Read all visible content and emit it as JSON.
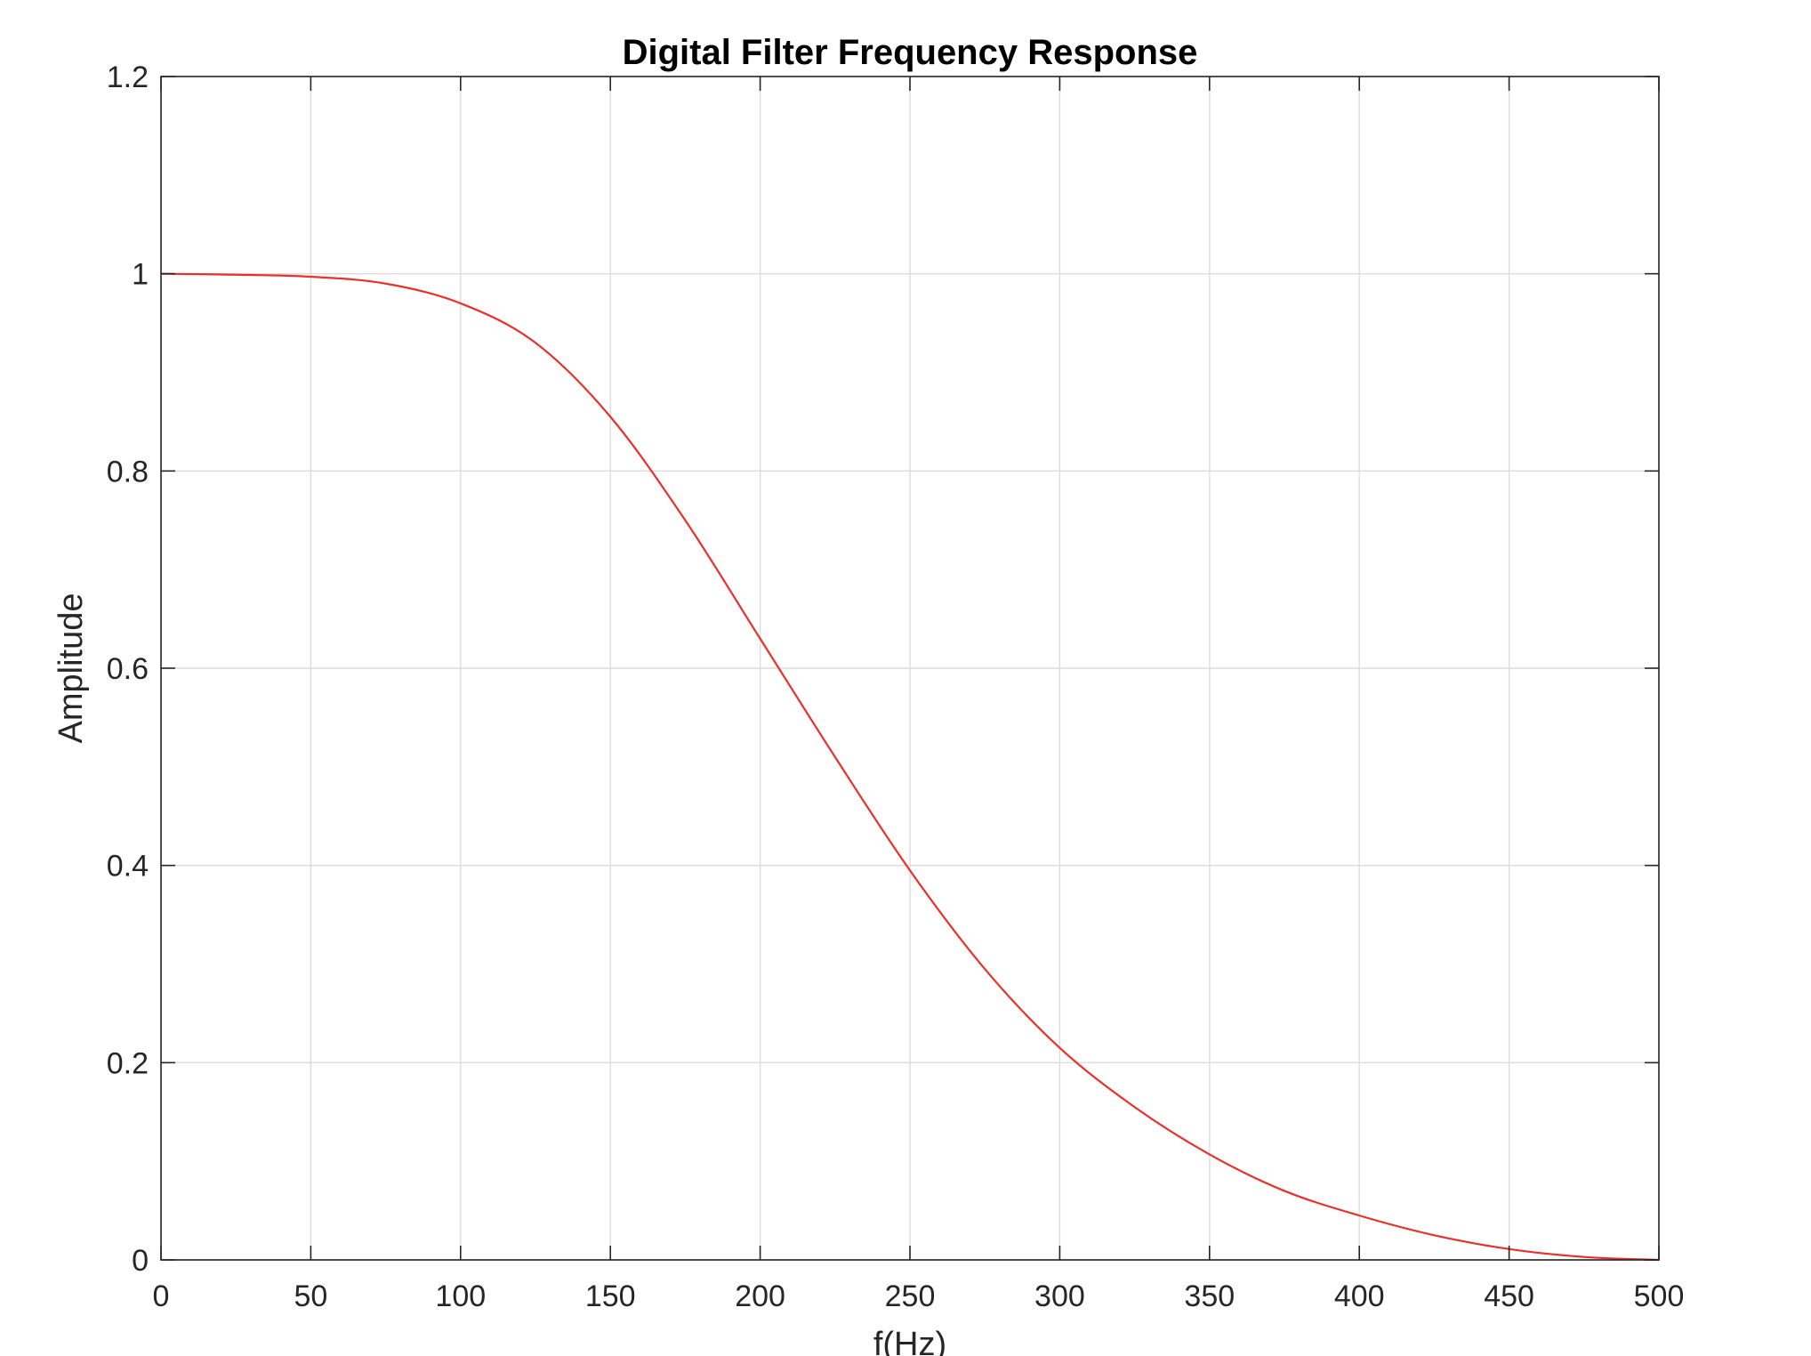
{
  "chart_data": {
    "type": "line",
    "title": "Digital Filter Frequency Response",
    "xlabel": "f(Hz)",
    "ylabel": "Amplitude",
    "xlim": [
      0,
      500
    ],
    "ylim": [
      0,
      1.2
    ],
    "xticks": [
      0,
      50,
      100,
      150,
      200,
      250,
      300,
      350,
      400,
      450,
      500
    ],
    "xtick_labels": [
      "0",
      "50",
      "100",
      "150",
      "200",
      "250",
      "300",
      "350",
      "400",
      "450",
      "500"
    ],
    "yticks": [
      0,
      0.2,
      0.4,
      0.6,
      0.8,
      1.0,
      1.2
    ],
    "ytick_labels": [
      "0",
      "0.2",
      "0.4",
      "0.6",
      "0.8",
      "1",
      "1.2"
    ],
    "grid": true,
    "series": [
      {
        "color": "#e8312a",
        "x": [
          0,
          25,
          50,
          75,
          100,
          125,
          150,
          175,
          200,
          225,
          250,
          275,
          300,
          325,
          350,
          375,
          400,
          425,
          450,
          475,
          500
        ],
        "y": [
          1.0,
          0.999,
          0.997,
          0.99,
          0.97,
          0.93,
          0.855,
          0.75,
          0.63,
          0.51,
          0.395,
          0.295,
          0.215,
          0.155,
          0.107,
          0.07,
          0.045,
          0.025,
          0.011,
          0.003,
          0.0
        ]
      }
    ]
  }
}
